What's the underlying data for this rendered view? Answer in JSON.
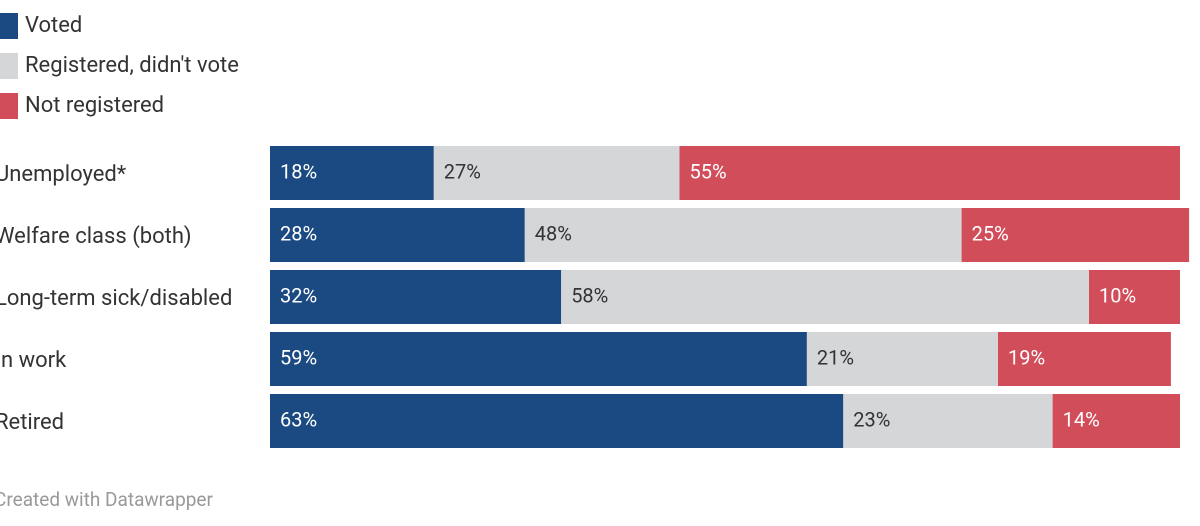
{
  "chart_data": {
    "type": "stacked_barh",
    "categories": [
      "Unemployed*",
      "Welfare class (both)",
      "Long-term sick/disabled",
      "In work",
      "Retired"
    ],
    "series": [
      {
        "name": "Voted",
        "color": "#1b4a82",
        "values": [
          18,
          28,
          32,
          59,
          63
        ],
        "value_labels": [
          "18%",
          "28%",
          "32%",
          "59%",
          "63%"
        ]
      },
      {
        "name": "Registered, didn't vote",
        "color": "#d5d6d8",
        "values": [
          27,
          48,
          58,
          21,
          23
        ],
        "value_labels": [
          "27%",
          "48%",
          "58%",
          "21%",
          "23%"
        ]
      },
      {
        "name": "Not registered",
        "color": "#d14d5a",
        "values": [
          55,
          25,
          10,
          19,
          14
        ],
        "value_labels": [
          "55%",
          "25%",
          "10%",
          "19%",
          "14%"
        ]
      }
    ],
    "xlim": [
      0,
      100
    ],
    "credit": "Created with Datawrapper"
  }
}
